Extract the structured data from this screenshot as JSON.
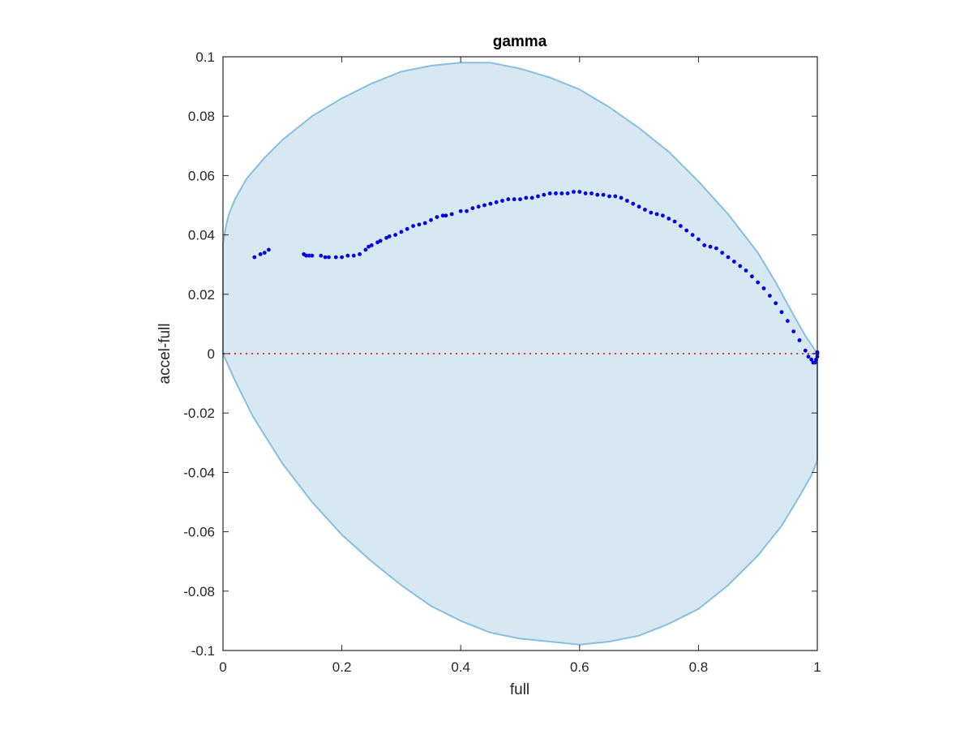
{
  "chart_data": {
    "type": "scatter",
    "title": "gamma",
    "xlabel": "full",
    "ylabel": "accel-full",
    "xlim": [
      0,
      1
    ],
    "ylim": [
      -0.1,
      0.1
    ],
    "x_ticks": [
      0,
      0.2,
      0.4,
      0.6,
      0.8,
      1
    ],
    "x_tick_labels": [
      "0",
      "0.2",
      "0.4",
      "0.6",
      "0.8",
      "1"
    ],
    "y_ticks": [
      -0.1,
      -0.08,
      -0.06,
      -0.04,
      -0.02,
      0,
      0.02,
      0.04,
      0.06,
      0.08,
      0.1
    ],
    "y_tick_labels": [
      "-0.1",
      "-0.08",
      "-0.06",
      "-0.04",
      "-0.02",
      "0",
      "0.02",
      "0.04",
      "0.06",
      "0.08",
      "0.1"
    ],
    "grid": false,
    "legend": "none",
    "colors": {
      "region_fill": "#d8e8f3",
      "region_edge": "#86bfe0",
      "points": "#0000e6",
      "zero_line": "#e63232",
      "axes": "#262626"
    },
    "shaded_region": {
      "upper": {
        "x": [
          0,
          0.005,
          0.01,
          0.02,
          0.04,
          0.07,
          0.1,
          0.15,
          0.2,
          0.25,
          0.3,
          0.35,
          0.4,
          0.45,
          0.5,
          0.55,
          0.6,
          0.65,
          0.7,
          0.75,
          0.8,
          0.85,
          0.9,
          0.93,
          0.96,
          0.98,
          0.99,
          1.0
        ],
        "y": [
          0.037,
          0.043,
          0.047,
          0.052,
          0.059,
          0.066,
          0.072,
          0.08,
          0.086,
          0.091,
          0.095,
          0.097,
          0.098,
          0.098,
          0.096,
          0.093,
          0.089,
          0.083,
          0.076,
          0.068,
          0.058,
          0.047,
          0.034,
          0.024,
          0.013,
          0.006,
          0.003,
          0.0
        ]
      },
      "lower": {
        "x": [
          0,
          0.02,
          0.05,
          0.1,
          0.15,
          0.2,
          0.25,
          0.3,
          0.35,
          0.4,
          0.45,
          0.5,
          0.55,
          0.6,
          0.65,
          0.7,
          0.75,
          0.8,
          0.85,
          0.9,
          0.94,
          0.97,
          0.99,
          1.0
        ],
        "y": [
          0.0,
          -0.009,
          -0.021,
          -0.037,
          -0.05,
          -0.061,
          -0.07,
          -0.078,
          -0.085,
          -0.09,
          -0.094,
          -0.096,
          -0.097,
          -0.098,
          -0.097,
          -0.095,
          -0.091,
          -0.086,
          -0.078,
          -0.068,
          -0.058,
          -0.048,
          -0.041,
          -0.036
        ]
      }
    },
    "reference_line": {
      "y": 0,
      "style": "dotted"
    },
    "series": [
      {
        "x": [
          0.053,
          0.063,
          0.07,
          0.077,
          0.136,
          0.14,
          0.145,
          0.15,
          0.165,
          0.172,
          0.178,
          0.19,
          0.2,
          0.21,
          0.22,
          0.23,
          0.24,
          0.245,
          0.25,
          0.26,
          0.265,
          0.275,
          0.28,
          0.29,
          0.3,
          0.31,
          0.32,
          0.33,
          0.34,
          0.35,
          0.36,
          0.37,
          0.375,
          0.385,
          0.4,
          0.41,
          0.42,
          0.43,
          0.44,
          0.45,
          0.46,
          0.47,
          0.48,
          0.49,
          0.5,
          0.51,
          0.52,
          0.53,
          0.54,
          0.55,
          0.56,
          0.57,
          0.58,
          0.59,
          0.6,
          0.61,
          0.62,
          0.63,
          0.64,
          0.65,
          0.66,
          0.67,
          0.68,
          0.69,
          0.7,
          0.71,
          0.72,
          0.73,
          0.74,
          0.75,
          0.76,
          0.77,
          0.78,
          0.79,
          0.8,
          0.81,
          0.82,
          0.83,
          0.84,
          0.85,
          0.86,
          0.87,
          0.88,
          0.89,
          0.9,
          0.91,
          0.92,
          0.93,
          0.94,
          0.95,
          0.96,
          0.97,
          0.98,
          0.985,
          0.99,
          0.993,
          0.996,
          0.998,
          1.0,
          1.0,
          1.0
        ],
        "y": [
          0.0325,
          0.0335,
          0.034,
          0.035,
          0.0335,
          0.033,
          0.033,
          0.033,
          0.033,
          0.0325,
          0.0325,
          0.0325,
          0.0325,
          0.033,
          0.033,
          0.0335,
          0.035,
          0.036,
          0.0365,
          0.0375,
          0.038,
          0.039,
          0.0395,
          0.04,
          0.041,
          0.042,
          0.043,
          0.0435,
          0.044,
          0.045,
          0.046,
          0.0465,
          0.0465,
          0.047,
          0.048,
          0.048,
          0.049,
          0.0495,
          0.05,
          0.0505,
          0.051,
          0.0515,
          0.052,
          0.052,
          0.052,
          0.0525,
          0.0525,
          0.053,
          0.0535,
          0.054,
          0.054,
          0.054,
          0.054,
          0.0545,
          0.0545,
          0.054,
          0.054,
          0.0535,
          0.0535,
          0.053,
          0.053,
          0.0525,
          0.0515,
          0.0505,
          0.0495,
          0.0485,
          0.0475,
          0.047,
          0.0465,
          0.0455,
          0.0445,
          0.043,
          0.0415,
          0.04,
          0.0385,
          0.0365,
          0.036,
          0.0355,
          0.034,
          0.0325,
          0.031,
          0.0295,
          0.028,
          0.026,
          0.024,
          0.022,
          0.0195,
          0.017,
          0.014,
          0.011,
          0.0075,
          0.0045,
          0.001,
          -0.001,
          -0.002,
          -0.003,
          -0.003,
          -0.002,
          -0.001,
          0.0,
          0.0005
        ]
      }
    ]
  }
}
